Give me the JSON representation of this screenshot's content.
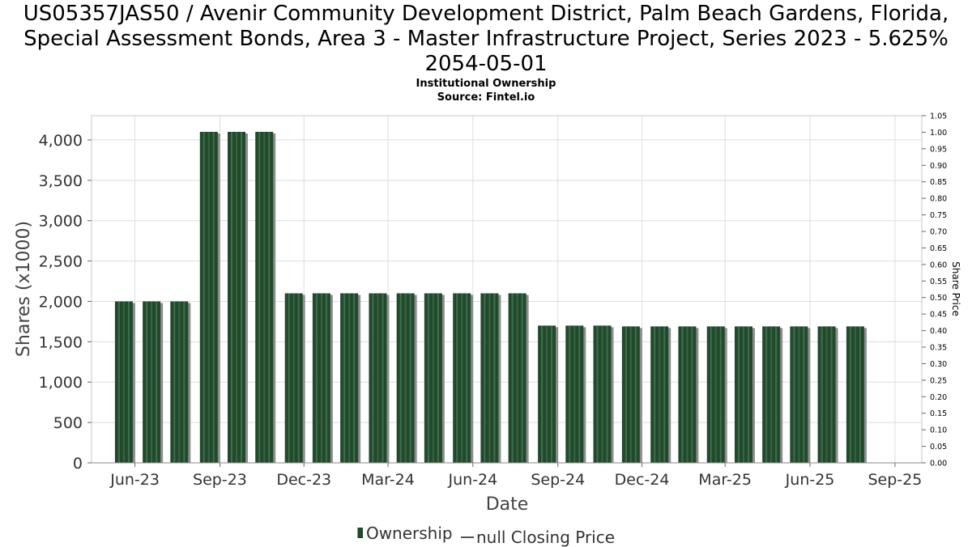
{
  "header": {
    "title": "US05357JAS50 / Avenir Community Development District, Palm Beach Gardens, Florida, Special Assessment Bonds, Area 3 - Master Infrastructure Project, Series 2023 - 5.625% 2054-05-01",
    "subtitle": "Institutional Ownership",
    "source": "Source: Fintel.io"
  },
  "legend": {
    "ownership": "Ownership",
    "price": "null Closing Price"
  },
  "colors": {
    "bar": "#214a2c",
    "bar_highlight": "#4f7d5a",
    "bar_shadow": "#8c8c8c",
    "grid": "#dddddd"
  },
  "chart_data": {
    "type": "bar",
    "title": "US05357JAS50 / Avenir Community Development District, Palm Beach Gardens, Florida, Special Assessment Bonds, Area 3 - Master Infrastructure Project, Series 2023 - 5.625% 2054-05-01",
    "subtitle": "Institutional Ownership",
    "xlabel": "Date",
    "ylabel": "Shares (x1000)",
    "y2label": "Share Price",
    "ylim": [
      0,
      4300
    ],
    "y2lim": [
      0,
      1.05
    ],
    "yticks": [
      "0",
      "500",
      "1,000",
      "1,500",
      "2,000",
      "2,500",
      "3,000",
      "3,500",
      "4,000"
    ],
    "ytick_values": [
      0,
      500,
      1000,
      1500,
      2000,
      2500,
      3000,
      3500,
      4000
    ],
    "y2ticks": [
      "0.00",
      "0.05",
      "0.10",
      "0.15",
      "0.20",
      "0.25",
      "0.30",
      "0.35",
      "0.40",
      "0.45",
      "0.50",
      "0.55",
      "0.60",
      "0.65",
      "0.70",
      "0.75",
      "0.80",
      "0.85",
      "0.90",
      "0.95",
      "1.00",
      "1.05"
    ],
    "xticks": [
      "Jun-23",
      "Sep-23",
      "Dec-23",
      "Mar-24",
      "Jun-24",
      "Sep-24",
      "Dec-24",
      "Mar-25",
      "Jun-25",
      "Sep-25"
    ],
    "xtick_dates": [
      "2023-06-01",
      "2023-09-01",
      "2023-12-01",
      "2024-03-01",
      "2024-06-01",
      "2024-09-01",
      "2024-12-01",
      "2025-03-01",
      "2025-06-01",
      "2025-09-01"
    ],
    "xlim": [
      "2023-04-15",
      "2025-09-30"
    ],
    "grid": true,
    "legend_position": "bottom",
    "series": [
      {
        "name": "Ownership",
        "dates": [
          "2023-05-20",
          "2023-06-19",
          "2023-07-19",
          "2023-08-20",
          "2023-09-19",
          "2023-10-19",
          "2023-11-20",
          "2023-12-20",
          "2024-01-19",
          "2024-02-19",
          "2024-03-20",
          "2024-04-19",
          "2024-05-20",
          "2024-06-19",
          "2024-07-19",
          "2024-08-20",
          "2024-09-19",
          "2024-10-19",
          "2024-11-19",
          "2024-12-20",
          "2025-01-19",
          "2025-02-19",
          "2025-03-21",
          "2025-04-20",
          "2025-05-20",
          "2025-06-19",
          "2025-07-20"
        ],
        "values": [
          2000,
          2000,
          2000,
          4100,
          4100,
          4100,
          2100,
          2100,
          2100,
          2100,
          2100,
          2100,
          2100,
          2100,
          2100,
          1700,
          1700,
          1700,
          1690,
          1690,
          1690,
          1690,
          1690,
          1690,
          1690,
          1690,
          1690
        ]
      }
    ]
  }
}
